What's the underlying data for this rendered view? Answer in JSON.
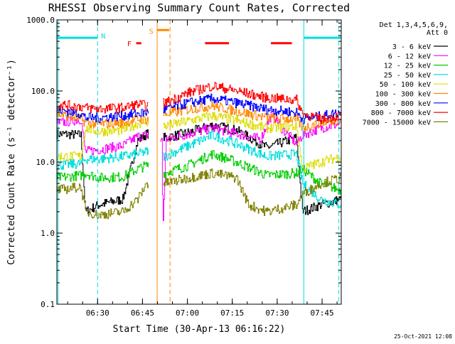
{
  "chart_data": {
    "type": "line",
    "title": "RHESSI Observing Summary Count Rates, Corrected",
    "xlabel": "Start Time (30-Apr-13 06:16:22)",
    "ylabel": "Corrected Count Rate (s⁻¹ detector⁻¹)",
    "yscale": "log",
    "ylim": [
      0.1,
      1000
    ],
    "xlim_minutes": [
      0,
      95
    ],
    "x_tick_minutes": [
      13.6,
      28.6,
      43.6,
      58.6,
      73.6,
      88.6
    ],
    "x_tick_labels": [
      "06:30",
      "06:45",
      "07:00",
      "07:15",
      "07:30",
      "07:45"
    ],
    "y_ticks": [
      0.1,
      1,
      10,
      100,
      1000
    ],
    "y_tick_labels": [
      "0.1",
      "1.0",
      "10.0",
      "100.0",
      "1000.0"
    ],
    "legend_header": [
      "Det 1,3,4,5,6,9,",
      "Att 0"
    ],
    "series": [
      {
        "name": "3 - 6 keV",
        "color": "#000000",
        "gaps": [
          [
            30.5,
            35.5
          ]
        ],
        "points": [
          [
            0,
            25
          ],
          [
            8,
            24
          ],
          [
            9.5,
            2
          ],
          [
            14,
            2.5
          ],
          [
            22,
            3
          ],
          [
            27,
            20
          ],
          [
            30,
            25
          ],
          [
            36,
            22
          ],
          [
            44,
            26
          ],
          [
            52,
            33
          ],
          [
            60,
            28
          ],
          [
            70,
            16
          ],
          [
            80,
            22
          ],
          [
            82,
            2
          ],
          [
            88,
            2.5
          ],
          [
            95,
            3
          ]
        ]
      },
      {
        "name": "6 - 12 keV",
        "color": "#ff00ff",
        "gaps": [
          [
            30.5,
            34.5
          ]
        ],
        "points": [
          [
            0,
            35
          ],
          [
            8,
            40
          ],
          [
            9.5,
            14
          ],
          [
            14,
            15
          ],
          [
            22,
            17
          ],
          [
            27,
            23
          ],
          [
            30,
            24
          ],
          [
            35,
            20
          ],
          [
            35.4,
            1.2
          ],
          [
            36.5,
            21
          ],
          [
            44,
            25
          ],
          [
            52,
            30
          ],
          [
            60,
            25
          ],
          [
            68,
            21
          ],
          [
            72,
            50
          ],
          [
            75,
            30
          ],
          [
            80,
            18
          ],
          [
            82,
            24
          ],
          [
            88,
            30
          ],
          [
            95,
            35
          ]
        ]
      },
      {
        "name": "12 - 25 keV",
        "color": "#00cc00",
        "gaps": [
          [
            30.5,
            35.5
          ]
        ],
        "points": [
          [
            0,
            6
          ],
          [
            8,
            6.5
          ],
          [
            9.5,
            7
          ],
          [
            14,
            6
          ],
          [
            22,
            6.2
          ],
          [
            27,
            8
          ],
          [
            30,
            9
          ],
          [
            36,
            7
          ],
          [
            44,
            9
          ],
          [
            52,
            13
          ],
          [
            60,
            10
          ],
          [
            70,
            6.5
          ],
          [
            80,
            7
          ],
          [
            82,
            8
          ],
          [
            88,
            5
          ],
          [
            95,
            4
          ]
        ]
      },
      {
        "name": "25 - 50 keV",
        "color": "#00dddd",
        "gaps": [
          [
            30.5,
            35.5
          ]
        ],
        "points": [
          [
            0,
            9
          ],
          [
            8,
            9.5
          ],
          [
            9.5,
            11
          ],
          [
            14,
            11
          ],
          [
            22,
            12
          ],
          [
            27,
            13
          ],
          [
            30,
            14
          ],
          [
            36,
            12
          ],
          [
            44,
            17
          ],
          [
            52,
            24
          ],
          [
            60,
            18
          ],
          [
            70,
            12
          ],
          [
            80,
            13
          ],
          [
            82,
            5
          ],
          [
            88,
            3
          ],
          [
            95,
            2.5
          ]
        ]
      },
      {
        "name": "50 - 100 keV",
        "color": "#dddd00",
        "gaps": [
          [
            30.5,
            35.5
          ]
        ],
        "points": [
          [
            0,
            12
          ],
          [
            8,
            12
          ],
          [
            9.5,
            30
          ],
          [
            14,
            27
          ],
          [
            22,
            28
          ],
          [
            27,
            35
          ],
          [
            30,
            37
          ],
          [
            36,
            32
          ],
          [
            44,
            38
          ],
          [
            52,
            45
          ],
          [
            60,
            38
          ],
          [
            70,
            30
          ],
          [
            80,
            32
          ],
          [
            82,
            8
          ],
          [
            88,
            10
          ],
          [
            95,
            12
          ]
        ]
      },
      {
        "name": "100 - 300 keV",
        "color": "#ff8800",
        "gaps": [
          [
            30.5,
            35.5
          ]
        ],
        "points": [
          [
            0,
            48
          ],
          [
            8,
            40
          ],
          [
            9.5,
            36
          ],
          [
            14,
            34
          ],
          [
            22,
            36
          ],
          [
            27,
            40
          ],
          [
            30,
            40
          ],
          [
            36,
            47
          ],
          [
            44,
            55
          ],
          [
            52,
            62
          ],
          [
            60,
            52
          ],
          [
            70,
            42
          ],
          [
            80,
            40
          ],
          [
            82,
            30
          ],
          [
            88,
            36
          ],
          [
            95,
            40
          ]
        ]
      },
      {
        "name": "300 - 800 keV",
        "color": "#0000ff",
        "gaps": [
          [
            30.5,
            35.5
          ]
        ],
        "points": [
          [
            0,
            55
          ],
          [
            8,
            48
          ],
          [
            9.5,
            42
          ],
          [
            14,
            42
          ],
          [
            22,
            45
          ],
          [
            27,
            48
          ],
          [
            30,
            50
          ],
          [
            36,
            55
          ],
          [
            44,
            68
          ],
          [
            52,
            78
          ],
          [
            60,
            68
          ],
          [
            70,
            55
          ],
          [
            80,
            50
          ],
          [
            82,
            40
          ],
          [
            88,
            44
          ],
          [
            95,
            50
          ]
        ]
      },
      {
        "name": "800 - 7000 keV",
        "color": "#ff0000",
        "gaps": [
          [
            30.5,
            35.5
          ]
        ],
        "points": [
          [
            0,
            65
          ],
          [
            8,
            60
          ],
          [
            9.5,
            58
          ],
          [
            14,
            56
          ],
          [
            22,
            58
          ],
          [
            27,
            65
          ],
          [
            30,
            62
          ],
          [
            36,
            68
          ],
          [
            44,
            95
          ],
          [
            52,
            118
          ],
          [
            60,
            100
          ],
          [
            70,
            80
          ],
          [
            80,
            75
          ],
          [
            82,
            48
          ],
          [
            88,
            40
          ],
          [
            95,
            45
          ]
        ]
      },
      {
        "name": "7000 - 15000 keV",
        "color": "#808000",
        "gaps": [
          [
            30.5,
            35.5
          ]
        ],
        "points": [
          [
            0,
            4
          ],
          [
            8,
            4.5
          ],
          [
            9.5,
            2
          ],
          [
            14,
            1.8
          ],
          [
            22,
            2
          ],
          [
            27,
            3
          ],
          [
            30,
            5
          ],
          [
            36,
            5
          ],
          [
            44,
            6
          ],
          [
            52,
            7
          ],
          [
            60,
            6
          ],
          [
            64,
            2.5
          ],
          [
            70,
            2
          ],
          [
            80,
            2.5
          ],
          [
            82,
            3.5
          ],
          [
            88,
            5
          ],
          [
            95,
            6
          ]
        ]
      }
    ],
    "regions": [
      {
        "label": "N",
        "color": "#00dddd",
        "start": 0,
        "end": 13.6,
        "level": 560,
        "label_at": 15.5,
        "label_level": 600
      },
      {
        "label": "N",
        "color": "#00dddd",
        "start": 82.5,
        "end": 95,
        "level": 560,
        "label_at": null,
        "label_level": null
      },
      {
        "label": "S",
        "color": "#ff8800",
        "start": 33.5,
        "end": 37.5,
        "level": 720,
        "label_at": 31.5,
        "label_level": 700
      }
    ],
    "flare_marks": {
      "label": "F",
      "color": "#ff0000",
      "label_at": 24.2,
      "label_level": 470,
      "level": 470,
      "segments": [
        [
          26.5,
          28.2
        ],
        [
          49.5,
          57.5
        ],
        [
          71.5,
          78.5
        ]
      ]
    },
    "region_boundaries_solid": [
      {
        "x": 0.4,
        "color": "#00dddd"
      },
      {
        "x": 82.5,
        "color": "#00dddd"
      },
      {
        "x": 33.5,
        "color": "#ff8800"
      }
    ],
    "region_boundaries_dashed": [
      {
        "x": 13.6,
        "color": "#00dddd"
      },
      {
        "x": 94.2,
        "color": "#00dddd"
      },
      {
        "x": 37.8,
        "color": "#ff8800"
      }
    ],
    "footer_timestamp": "25-Oct-2021 12:08"
  }
}
